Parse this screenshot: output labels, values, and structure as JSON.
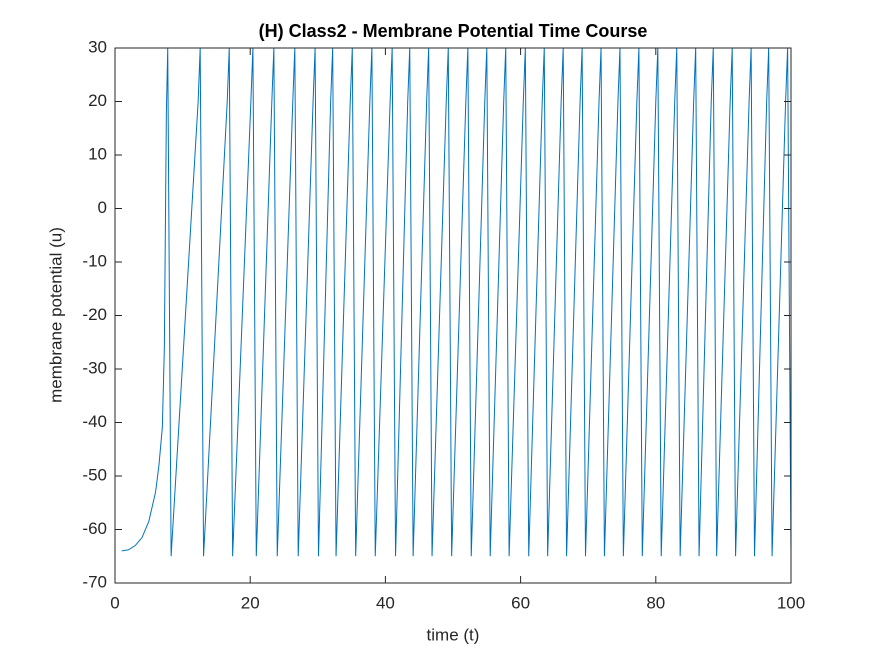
{
  "chart_data": {
    "type": "line",
    "title": "(H) Class2 - Membrane Potential Time Course",
    "x_label": "time (t)",
    "y_label": "membrane potential (u)",
    "xlim": [
      0,
      100
    ],
    "xticks": [
      0,
      20,
      40,
      60,
      80,
      100
    ],
    "ylim": [
      -70,
      30
    ],
    "yticks": [
      -70,
      -60,
      -50,
      -40,
      -30,
      -20,
      -10,
      0,
      10,
      20,
      30
    ],
    "series": [
      {
        "color": "#0072bd",
        "x": [
          1,
          2,
          3,
          4,
          5,
          6,
          6.5,
          7,
          7.3,
          7.6,
          7.8,
          8.3,
          12.3,
          12.6,
          13.1,
          16.6,
          16.9,
          17.4,
          20.1,
          20.4,
          20.9,
          23.2,
          23.5,
          24.0,
          26.3,
          26.6,
          27.1,
          29.3,
          29.6,
          30.1,
          31.9,
          32.2,
          32.7,
          34.8,
          35.1,
          35.6,
          37.7,
          38.0,
          38.5,
          40.7,
          41.0,
          41.5,
          43.3,
          43.6,
          44.1,
          46.1,
          46.4,
          46.9,
          49.0,
          49.3,
          49.8,
          51.9,
          52.2,
          52.7,
          54.7,
          55.0,
          55.5,
          57.5,
          57.8,
          58.3,
          60.4,
          60.7,
          61.2,
          63.2,
          63.5,
          64.0,
          66.0,
          66.3,
          66.8,
          68.8,
          69.1,
          69.6,
          71.6,
          71.9,
          72.4,
          74.4,
          74.7,
          75.2,
          77.2,
          77.5,
          78.0,
          80.0,
          80.3,
          80.8,
          82.8,
          83.1,
          83.6,
          85.6,
          85.9,
          86.4,
          88.2,
          88.5,
          89.0,
          91.0,
          91.3,
          91.8,
          93.8,
          94.1,
          94.6,
          96.4,
          96.7,
          97.2,
          99.2,
          99.5,
          100
        ],
        "values": [
          -64,
          -63.8,
          -63,
          -61.5,
          -58.5,
          -53,
          -48,
          -41,
          -26,
          18,
          30,
          -65,
          20,
          30,
          -65,
          20,
          30,
          -65,
          20,
          30,
          -65,
          20,
          30,
          -65,
          20,
          30,
          -65,
          20,
          30,
          -65,
          20,
          30,
          -65,
          20,
          30,
          -65,
          20,
          30,
          -65,
          20,
          30,
          -65,
          20,
          30,
          -65,
          20,
          30,
          -65,
          20,
          30,
          -65,
          20,
          30,
          -65,
          20,
          30,
          -65,
          20,
          30,
          -65,
          20,
          30,
          -65,
          20,
          30,
          -65,
          20,
          30,
          -65,
          20,
          30,
          -65,
          20,
          30,
          -65,
          20,
          30,
          -65,
          20,
          30,
          -65,
          20,
          30,
          -65,
          20,
          30,
          -65,
          20,
          30,
          -65,
          20,
          30,
          -65,
          20,
          30,
          -65,
          20,
          30,
          -65,
          20,
          30,
          -65,
          20,
          30,
          -65
        ]
      }
    ]
  }
}
